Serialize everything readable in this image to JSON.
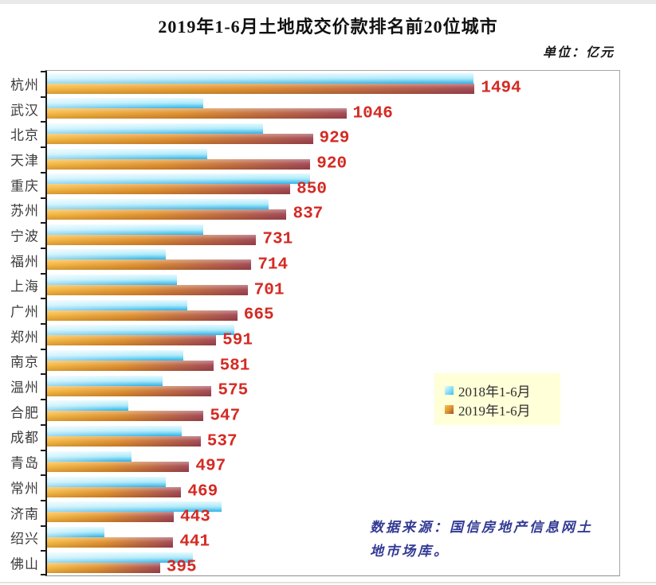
{
  "title": "2019年1-6月土地成交价款排名前20位城市",
  "unit_label": "单位：亿元",
  "legend": {
    "items": [
      {
        "label": "2018年1-6月",
        "swatch": "cyan-gradient-square"
      },
      {
        "label": "2019年1-6月",
        "swatch": "orange-gradient-square"
      }
    ],
    "background": "#ffffd8",
    "position": "middle-right"
  },
  "source_note": {
    "line1": "数据来源：国信房地产信息网土",
    "line2": "地市场库。"
  },
  "colors": {
    "title_text": "#111111",
    "value_label": "#d42b24",
    "category_label": "#3c3c3c",
    "bar_2018_light": "#e6f9fe",
    "bar_2018_dark": "#2fb3e8",
    "bar_2019_light": "#f6b93d",
    "bar_2019_dark": "#a04451",
    "legend_background": "#ffffd8",
    "source_text": "#323a94",
    "axis_line": "#1a1a1a",
    "frame_line": "#a6a6a6"
  },
  "chart_data": {
    "type": "bar",
    "orientation": "horizontal",
    "title": "2019年1-6月土地成交价款排名前20位城市",
    "unit": "亿元",
    "xlabel": "",
    "ylabel": "",
    "xlim": [
      0,
      2000
    ],
    "grid": false,
    "legend_position": "middle-right",
    "categories": [
      "杭州",
      "武汉",
      "北京",
      "天津",
      "重庆",
      "苏州",
      "宁波",
      "福州",
      "上海",
      "广州",
      "郑州",
      "南京",
      "温州",
      "合肥",
      "成都",
      "青岛",
      "常州",
      "济南",
      "绍兴",
      "佛山"
    ],
    "series": [
      {
        "name": "2018年1-6月",
        "values": [
          1490,
          545,
          755,
          560,
          920,
          775,
          545,
          415,
          455,
          490,
          655,
          475,
          405,
          285,
          470,
          295,
          415,
          610,
          200,
          510
        ],
        "values_estimated_from_bar_lengths": true,
        "labeled": false
      },
      {
        "name": "2019年1-6月",
        "values": [
          1494,
          1046,
          929,
          920,
          850,
          837,
          731,
          714,
          701,
          665,
          591,
          581,
          575,
          547,
          537,
          497,
          469,
          443,
          441,
          395
        ],
        "labeled": true
      }
    ],
    "value_labels_series": "2019年1-6月"
  }
}
